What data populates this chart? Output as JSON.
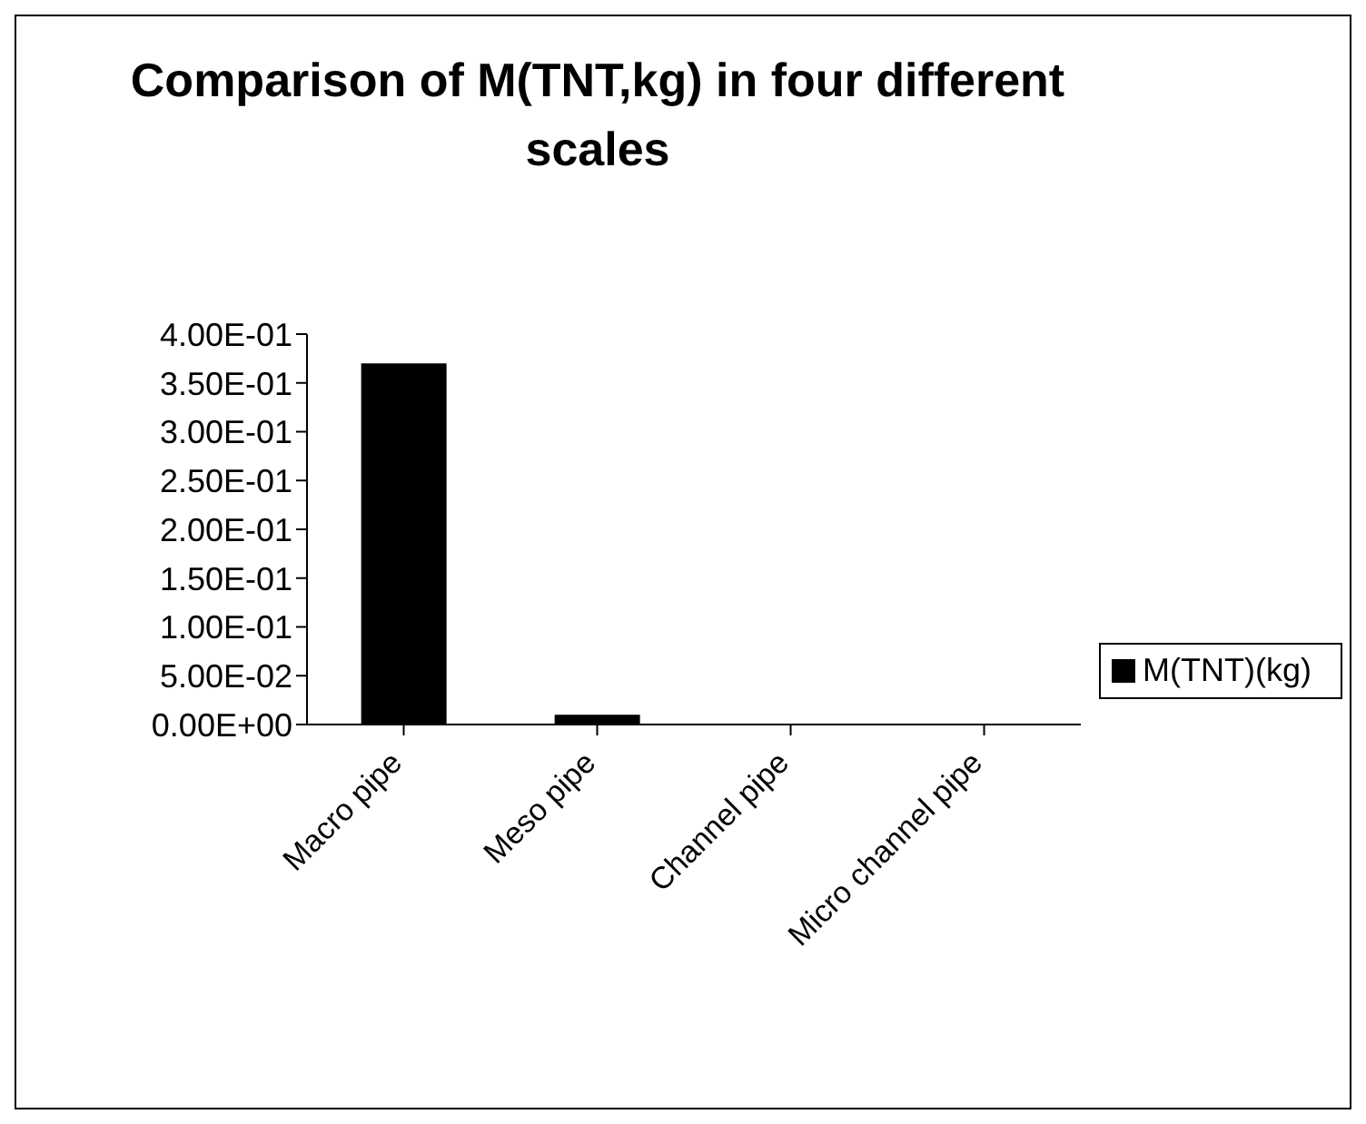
{
  "chart_data": {
    "type": "bar",
    "title": "Comparison of M(TNT,kg) in four different scales",
    "categories": [
      "Macro pipe",
      "Meso pipe",
      "Channel pipe",
      "Micro channel pipe"
    ],
    "series": [
      {
        "name": "M(TNT)(kg)",
        "color": "#000000",
        "values": [
          0.37,
          0.01,
          0,
          0
        ]
      }
    ],
    "ylim": [
      0,
      0.4
    ],
    "yticks": [
      {
        "value": 0,
        "label": "0.00E+00"
      },
      {
        "value": 0.05,
        "label": "5.00E-02"
      },
      {
        "value": 0.1,
        "label": "1.00E-01"
      },
      {
        "value": 0.15,
        "label": "1.50E-01"
      },
      {
        "value": 0.2,
        "label": "2.00E-01"
      },
      {
        "value": 0.25,
        "label": "2.50E-01"
      },
      {
        "value": 0.3,
        "label": "3.00E-01"
      },
      {
        "value": 0.35,
        "label": "3.50E-01"
      },
      {
        "value": 0.4,
        "label": "4.00E-01"
      }
    ],
    "grid": false,
    "legend": "right"
  }
}
